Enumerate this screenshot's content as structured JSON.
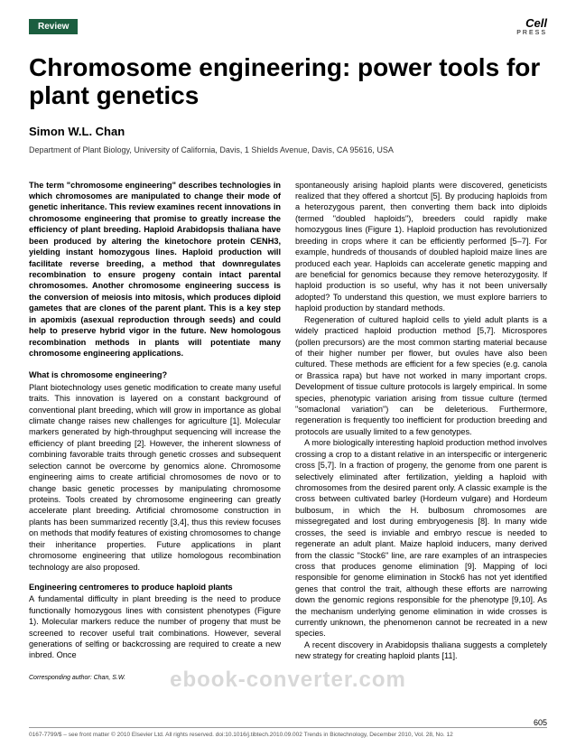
{
  "header": {
    "badge": "Review",
    "press_logo": "Cell",
    "press_sub": "PRESS"
  },
  "title": "Chromosome engineering: power tools for plant genetics",
  "author": "Simon W.L. Chan",
  "affiliation": "Department of Plant Biology, University of California, Davis, 1 Shields Avenue, Davis, CA 95616, USA",
  "abstract": "The term \"chromosome engineering\" describes technologies in which chromosomes are manipulated to change their mode of genetic inheritance. This review examines recent innovations in chromosome engineering that promise to greatly increase the efficiency of plant breeding. Haploid Arabidopsis thaliana have been produced by altering the kinetochore protein CENH3, yielding instant homozygous lines. Haploid production will facilitate reverse breeding, a method that downregulates recombination to ensure progeny contain intact parental chromosomes. Another chromosome engineering success is the conversion of meiosis into mitosis, which produces diploid gametes that are clones of the parent plant. This is a key step in apomixis (asexual reproduction through seeds) and could help to preserve hybrid vigor in the future. New homologous recombination methods in plants will potentiate many chromosome engineering applications.",
  "section1": {
    "heading": "What is chromosome engineering?",
    "p1": "Plant biotechnology uses genetic modification to create many useful traits. This innovation is layered on a constant background of conventional plant breeding, which will grow in importance as global climate change raises new challenges for agriculture [1]. Molecular markers generated by high-throughput sequencing will increase the efficiency of plant breeding [2]. However, the inherent slowness of combining favorable traits through genetic crosses and subsequent selection cannot be overcome by genomics alone. Chromosome engineering aims to create artificial chromosomes de novo or to change basic genetic processes by manipulating chromosome proteins. Tools created by chromosome engineering can greatly accelerate plant breeding. Artificial chromosome construction in plants has been summarized recently [3,4], thus this review focuses on methods that modify features of existing chromosomes to change their inheritance properties. Future applications in plant chromosome engineering that utilize homologous recombination technology are also proposed."
  },
  "section2": {
    "heading": "Engineering centromeres to produce haploid plants",
    "p1": "A fundamental difficulty in plant breeding is the need to produce functionally homozygous lines with consistent phenotypes (Figure 1). Molecular markers reduce the number of progeny that must be screened to recover useful trait combinations. However, several generations of selfing or backcrossing are required to create a new inbred. Once"
  },
  "col2": {
    "p1": "spontaneously arising haploid plants were discovered, geneticists realized that they offered a shortcut [5]. By producing haploids from a heterozygous parent, then converting them back into diploids (termed \"doubled haploids\"), breeders could rapidly make homozygous lines (Figure 1). Haploid production has revolutionized breeding in crops where it can be efficiently performed [5–7]. For example, hundreds of thousands of doubled haploid maize lines are produced each year. Haploids can accelerate genetic mapping and are beneficial for genomics because they remove heterozygosity. If haploid production is so useful, why has it not been universally adopted? To understand this question, we must explore barriers to haploid production by standard methods.",
    "p2": "Regeneration of cultured haploid cells to yield adult plants is a widely practiced haploid production method [5,7]. Microspores (pollen precursors) are the most common starting material because of their higher number per flower, but ovules have also been cultured. These methods are efficient for a few species (e.g. canola or Brassica rapa) but have not worked in many important crops. Development of tissue culture protocols is largely empirical. In some species, phenotypic variation arising from tissue culture (termed \"somaclonal variation\") can be deleterious. Furthermore, regeneration is frequently too inefficient for production breeding and protocols are usually limited to a few genotypes.",
    "p3": "A more biologically interesting haploid production method involves crossing a crop to a distant relative in an interspecific or intergeneric cross [5,7]. In a fraction of progeny, the genome from one parent is selectively eliminated after fertilization, yielding a haploid with chromosomes from the desired parent only. A classic example is the cross between cultivated barley (Hordeum vulgare) and Hordeum bulbosum, in which the H. bulbosum chromosomes are missegregated and lost during embryogenesis [8]. In many wide crosses, the seed is inviable and embryo rescue is needed to regenerate an adult plant. Maize haploid inducers, many derived from the classic \"Stock6\" line, are rare examples of an intraspecies cross that produces genome elimination [9]. Mapping of loci responsible for genome elimination in Stock6 has not yet identified genes that control the trait, although these efforts are narrowing down the genomic regions responsible for the phenotype [9,10]. As the mechanism underlying genome elimination in wide crosses is currently unknown, the phenomenon cannot be recreated in a new species.",
    "p4": "A recent discovery in Arabidopsis thaliana suggests a completely new strategy for creating haploid plants [11]."
  },
  "corresponding": "Corresponding author: Chan, S.W.",
  "footer_left": "0167-7799/$ – see front matter © 2010 Elsevier Ltd. All rights reserved. doi:10.1016/j.tibtech.2010.09.002  Trends in Biotechnology, December 2010, Vol. 28, No. 12",
  "pagenum": "605",
  "watermark": "ebook-converter.com",
  "colors": {
    "badge_bg": "#1b5e3f",
    "text": "#000000",
    "footer_text": "#555555"
  }
}
